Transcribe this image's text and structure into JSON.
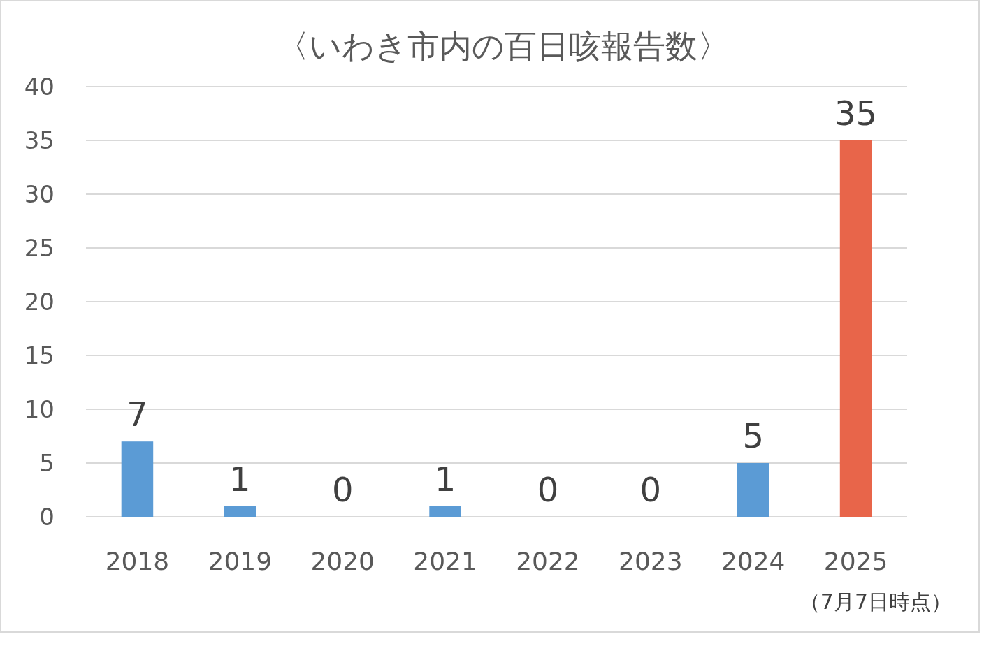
{
  "chart_data": {
    "type": "bar",
    "title": "〈いわき市内の百日咳報告数〉",
    "categories": [
      "2018",
      "2019",
      "2020",
      "2021",
      "2022",
      "2023",
      "2024",
      "2025"
    ],
    "values": [
      7,
      1,
      0,
      1,
      0,
      0,
      5,
      35
    ],
    "colors": [
      "#5b9bd5",
      "#5b9bd5",
      "#5b9bd5",
      "#5b9bd5",
      "#5b9bd5",
      "#5b9bd5",
      "#5b9bd5",
      "#e8654a"
    ],
    "ylim": [
      0,
      40
    ],
    "yticks": [
      0,
      5,
      10,
      15,
      20,
      25,
      30,
      35,
      40
    ],
    "grid": "y",
    "data_labels": true,
    "annotations": [
      "（7月7日時点）"
    ]
  }
}
